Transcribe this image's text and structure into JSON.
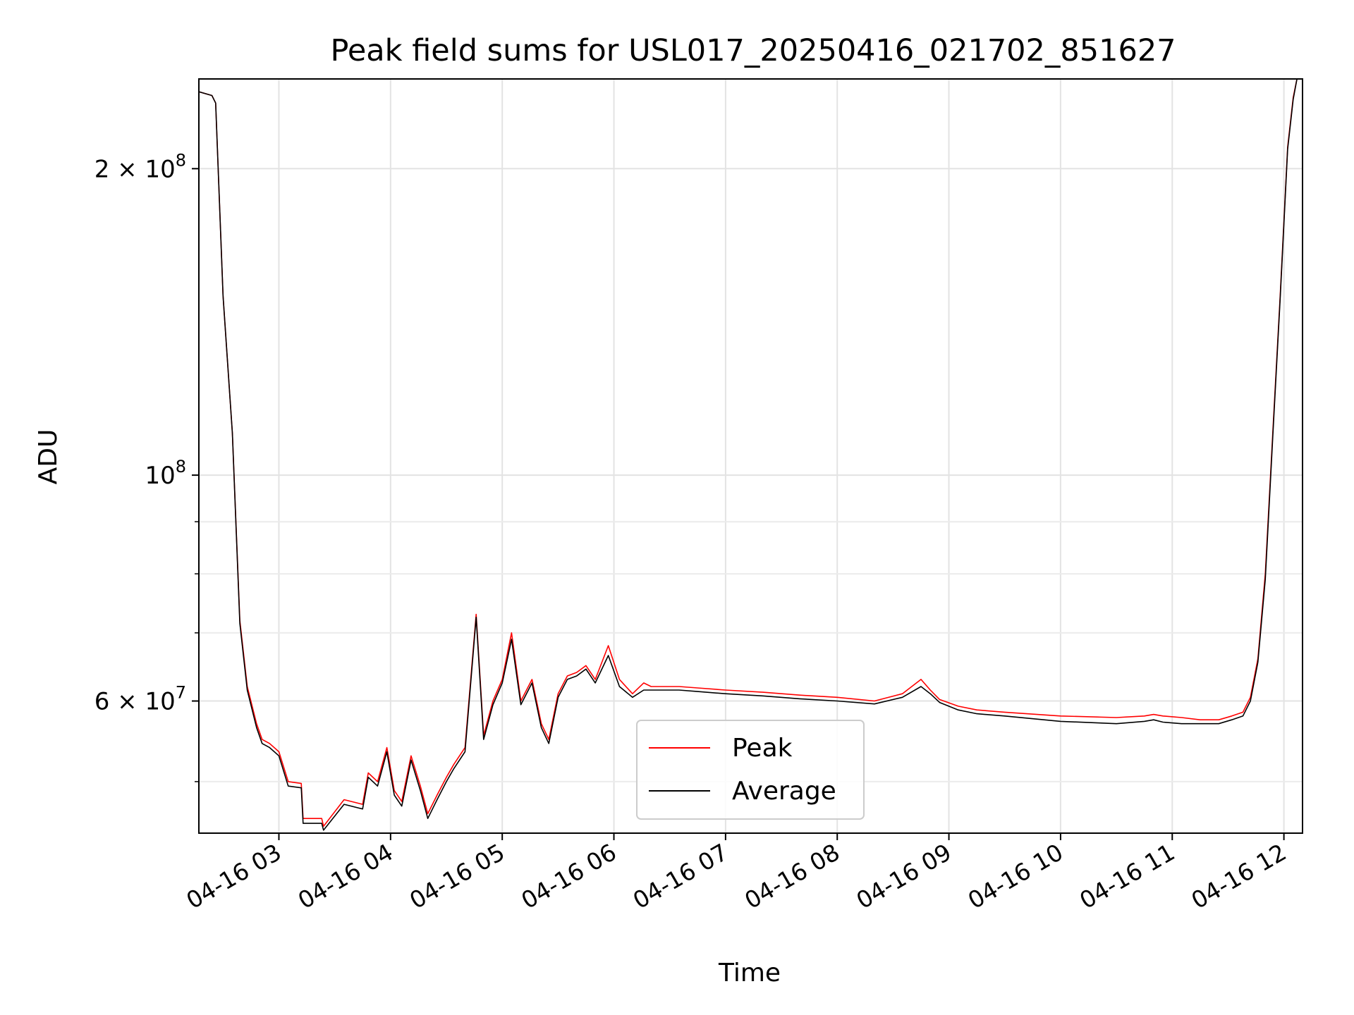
{
  "chart_data": {
    "type": "line",
    "title": "Peak field sums for USL017_20250416_021702_851627",
    "xlabel": "Time",
    "ylabel": "ADU",
    "y_scale": "log",
    "xlim": [
      "2025-04-16T02:17",
      "2025-04-16T12:10"
    ],
    "ylim": [
      44500000,
      245000000
    ],
    "x_ticks": [
      "04-16 03",
      "04-16 04",
      "04-16 05",
      "04-16 06",
      "04-16 07",
      "04-16 08",
      "04-16 09",
      "04-16 10",
      "04-16 11",
      "04-16 12"
    ],
    "y_major_ticks": [
      {
        "value": 200000000,
        "label_base": "2 × 10",
        "label_exp": "8"
      },
      {
        "value": 100000000,
        "label_base": "10",
        "label_exp": "8"
      },
      {
        "value": 60000000,
        "label_base": "6 × 10",
        "label_exp": "7"
      }
    ],
    "y_minor_ticks": [
      50000000,
      70000000,
      80000000,
      90000000
    ],
    "grid": true,
    "legend_position": "lower-center",
    "series": [
      {
        "name": "Peak",
        "color": "#ff0000",
        "x": [
          "2025-04-16T02:17",
          "2025-04-16T02:24",
          "2025-04-16T02:26",
          "2025-04-16T02:30",
          "2025-04-16T02:35",
          "2025-04-16T02:39",
          "2025-04-16T02:43",
          "2025-04-16T02:48",
          "2025-04-16T02:51",
          "2025-04-16T02:55",
          "2025-04-16T03:00",
          "2025-04-16T03:05",
          "2025-04-16T03:12",
          "2025-04-16T03:13",
          "2025-04-16T03:23",
          "2025-04-16T03:24",
          "2025-04-16T03:35",
          "2025-04-16T03:45",
          "2025-04-16T03:48",
          "2025-04-16T03:53",
          "2025-04-16T03:58",
          "2025-04-16T04:02",
          "2025-04-16T04:06",
          "2025-04-16T04:11",
          "2025-04-16T04:16",
          "2025-04-16T04:20",
          "2025-04-16T04:25",
          "2025-04-16T04:30",
          "2025-04-16T04:34",
          "2025-04-16T04:40",
          "2025-04-16T04:46",
          "2025-04-16T04:50",
          "2025-04-16T04:55",
          "2025-04-16T05:00",
          "2025-04-16T05:05",
          "2025-04-16T05:10",
          "2025-04-16T05:16",
          "2025-04-16T05:21",
          "2025-04-16T05:25",
          "2025-04-16T05:30",
          "2025-04-16T05:35",
          "2025-04-16T05:40",
          "2025-04-16T05:45",
          "2025-04-16T05:50",
          "2025-04-16T05:57",
          "2025-04-16T06:03",
          "2025-04-16T06:10",
          "2025-04-16T06:16",
          "2025-04-16T06:20",
          "2025-04-16T06:25",
          "2025-04-16T06:35",
          "2025-04-16T06:45",
          "2025-04-16T07:00",
          "2025-04-16T07:20",
          "2025-04-16T07:40",
          "2025-04-16T08:00",
          "2025-04-16T08:20",
          "2025-04-16T08:35",
          "2025-04-16T08:45",
          "2025-04-16T08:50",
          "2025-04-16T08:55",
          "2025-04-16T09:05",
          "2025-04-16T09:15",
          "2025-04-16T09:30",
          "2025-04-16T10:00",
          "2025-04-16T10:30",
          "2025-04-16T10:45",
          "2025-04-16T10:50",
          "2025-04-16T10:55",
          "2025-04-16T11:05",
          "2025-04-16T11:15",
          "2025-04-16T11:25",
          "2025-04-16T11:32",
          "2025-04-16T11:38",
          "2025-04-16T11:42",
          "2025-04-16T11:46",
          "2025-04-16T11:50",
          "2025-04-16T11:54",
          "2025-04-16T11:58",
          "2025-04-16T12:02",
          "2025-04-16T12:05",
          "2025-04-16T12:07"
        ],
        "y": [
          238000000,
          236000000,
          232000000,
          150000000,
          110000000,
          72000000,
          62000000,
          57000000,
          55000000,
          54500000,
          53500000,
          50000000,
          49800000,
          46000000,
          46000000,
          45200000,
          48000000,
          47500000,
          51000000,
          50000000,
          54000000,
          49000000,
          47800000,
          53000000,
          49500000,
          46500000,
          48500000,
          50500000,
          52000000,
          54000000,
          73000000,
          55500000,
          60000000,
          63000000,
          70000000,
          60000000,
          63000000,
          57000000,
          55000000,
          61000000,
          63500000,
          64000000,
          65000000,
          63000000,
          68000000,
          63000000,
          61000000,
          62500000,
          62000000,
          62000000,
          62000000,
          61800000,
          61500000,
          61200000,
          60800000,
          60500000,
          60000000,
          61000000,
          63000000,
          61500000,
          60200000,
          59300000,
          58800000,
          58500000,
          58000000,
          57800000,
          58000000,
          58200000,
          58000000,
          57800000,
          57500000,
          57500000,
          58000000,
          58500000,
          60500000,
          66000000,
          80000000,
          110000000,
          150000000,
          210000000,
          235000000,
          245000000
        ]
      },
      {
        "name": "Average",
        "color": "#000000",
        "x": [
          "2025-04-16T02:17",
          "2025-04-16T02:24",
          "2025-04-16T02:26",
          "2025-04-16T02:30",
          "2025-04-16T02:35",
          "2025-04-16T02:39",
          "2025-04-16T02:43",
          "2025-04-16T02:48",
          "2025-04-16T02:51",
          "2025-04-16T02:55",
          "2025-04-16T03:00",
          "2025-04-16T03:05",
          "2025-04-16T03:12",
          "2025-04-16T03:13",
          "2025-04-16T03:23",
          "2025-04-16T03:24",
          "2025-04-16T03:35",
          "2025-04-16T03:45",
          "2025-04-16T03:48",
          "2025-04-16T03:53",
          "2025-04-16T03:58",
          "2025-04-16T04:02",
          "2025-04-16T04:06",
          "2025-04-16T04:11",
          "2025-04-16T04:16",
          "2025-04-16T04:20",
          "2025-04-16T04:25",
          "2025-04-16T04:30",
          "2025-04-16T04:34",
          "2025-04-16T04:40",
          "2025-04-16T04:46",
          "2025-04-16T04:50",
          "2025-04-16T04:55",
          "2025-04-16T05:00",
          "2025-04-16T05:05",
          "2025-04-16T05:10",
          "2025-04-16T05:16",
          "2025-04-16T05:21",
          "2025-04-16T05:25",
          "2025-04-16T05:30",
          "2025-04-16T05:35",
          "2025-04-16T05:40",
          "2025-04-16T05:45",
          "2025-04-16T05:50",
          "2025-04-16T05:57",
          "2025-04-16T06:03",
          "2025-04-16T06:10",
          "2025-04-16T06:16",
          "2025-04-16T06:20",
          "2025-04-16T06:25",
          "2025-04-16T06:35",
          "2025-04-16T06:45",
          "2025-04-16T07:00",
          "2025-04-16T07:20",
          "2025-04-16T07:40",
          "2025-04-16T08:00",
          "2025-04-16T08:20",
          "2025-04-16T08:35",
          "2025-04-16T08:45",
          "2025-04-16T08:50",
          "2025-04-16T08:55",
          "2025-04-16T09:05",
          "2025-04-16T09:15",
          "2025-04-16T09:30",
          "2025-04-16T10:00",
          "2025-04-16T10:30",
          "2025-04-16T10:45",
          "2025-04-16T10:50",
          "2025-04-16T10:55",
          "2025-04-16T11:05",
          "2025-04-16T11:15",
          "2025-04-16T11:25",
          "2025-04-16T11:32",
          "2025-04-16T11:38",
          "2025-04-16T11:42",
          "2025-04-16T11:46",
          "2025-04-16T11:50",
          "2025-04-16T11:54",
          "2025-04-16T11:58",
          "2025-04-16T12:02",
          "2025-04-16T12:05",
          "2025-04-16T12:07"
        ],
        "y": [
          238000000,
          236000000,
          232000000,
          150000000,
          110000000,
          71500000,
          61500000,
          56500000,
          54500000,
          54000000,
          53000000,
          49500000,
          49300000,
          45500000,
          45500000,
          44800000,
          47500000,
          47000000,
          50500000,
          49500000,
          53500000,
          48500000,
          47300000,
          52500000,
          49000000,
          46000000,
          48000000,
          50000000,
          51500000,
          53500000,
          72500000,
          55000000,
          59500000,
          62500000,
          69000000,
          59500000,
          62500000,
          56500000,
          54500000,
          60500000,
          63000000,
          63500000,
          64500000,
          62500000,
          66500000,
          62000000,
          60500000,
          61500000,
          61500000,
          61500000,
          61500000,
          61300000,
          61000000,
          60700000,
          60300000,
          60000000,
          59600000,
          60500000,
          62000000,
          61000000,
          59800000,
          58800000,
          58300000,
          58000000,
          57300000,
          57000000,
          57300000,
          57500000,
          57200000,
          57000000,
          57000000,
          57000000,
          57500000,
          58000000,
          60000000,
          65500000,
          79000000,
          109000000,
          149000000,
          209000000,
          234000000,
          245000000
        ]
      }
    ]
  }
}
